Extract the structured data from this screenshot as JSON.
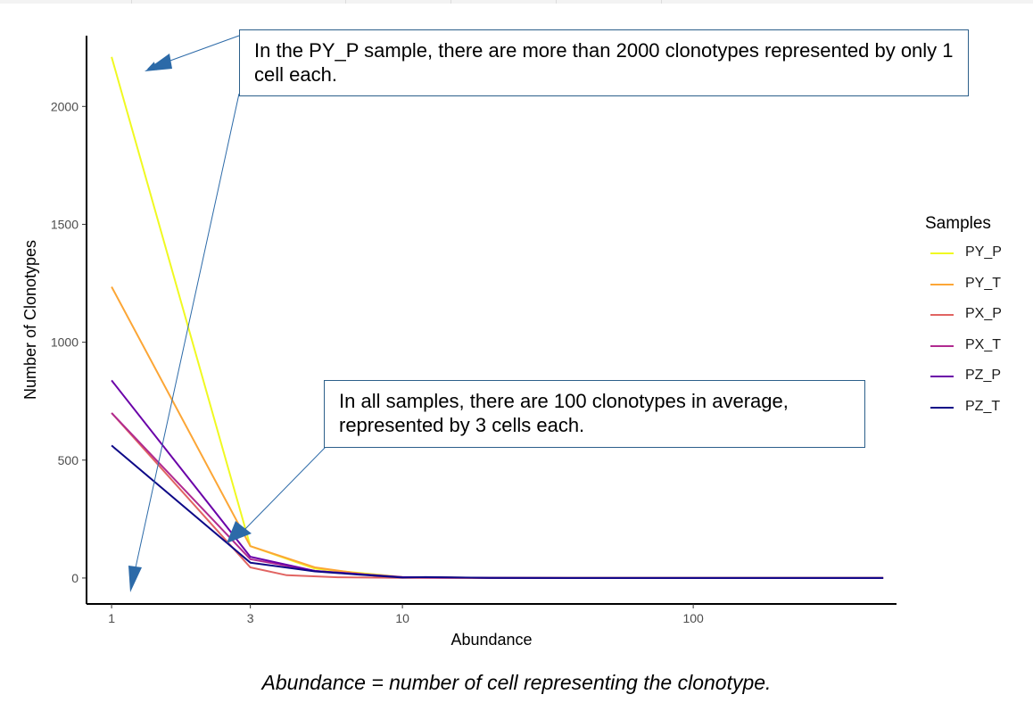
{
  "chart_data": {
    "type": "line",
    "xlabel": "Abundance",
    "ylabel": "Number of Clonotypes",
    "x_scale": "log",
    "xlim": [
      0.82,
      500
    ],
    "ylim": [
      -110,
      2300
    ],
    "x_ticks": [
      1,
      3,
      10,
      100
    ],
    "y_ticks": [
      0,
      500,
      1000,
      1500,
      2000
    ],
    "grid": false,
    "legend_title": "Samples",
    "legend_position": "right",
    "series": [
      {
        "name": "PY_P",
        "color": "#f0f921",
        "x": [
          1,
          3,
          5,
          10,
          20,
          50,
          100,
          450
        ],
        "y": [
          2210,
          135,
          40,
          4,
          1,
          0,
          0,
          0
        ]
      },
      {
        "name": "PY_T",
        "color": "#fca636",
        "x": [
          1,
          3,
          5,
          8,
          10,
          20,
          50,
          100,
          450
        ],
        "y": [
          1235,
          135,
          45,
          10,
          3,
          1,
          0,
          0,
          0
        ]
      },
      {
        "name": "PX_P",
        "color": "#e16462",
        "x": [
          1,
          3,
          4,
          6,
          10,
          20,
          50,
          100,
          450
        ],
        "y": [
          700,
          45,
          12,
          3,
          1,
          0,
          0,
          0,
          0
        ]
      },
      {
        "name": "PX_T",
        "color": "#b12a90",
        "x": [
          1,
          3,
          5,
          10,
          20,
          50,
          100,
          450
        ],
        "y": [
          700,
          80,
          30,
          3,
          1,
          0,
          0,
          0
        ]
      },
      {
        "name": "PZ_P",
        "color": "#6a00a8",
        "x": [
          1,
          3,
          5,
          10,
          20,
          50,
          100,
          450
        ],
        "y": [
          838,
          90,
          30,
          4,
          1,
          0,
          0,
          0
        ]
      },
      {
        "name": "PZ_T",
        "color": "#0d0887",
        "x": [
          1,
          3,
          5,
          7,
          10,
          12,
          20,
          50,
          100,
          450
        ],
        "y": [
          562,
          65,
          28,
          15,
          2,
          4,
          1,
          0,
          0,
          0
        ]
      }
    ],
    "annotations": [
      {
        "text": "In the PY_P sample, there are more than 2000 clonotypes represented by only 1 cell each."
      },
      {
        "text": "In all samples, there are 100 clonotypes in average, represented by 3 cells each."
      }
    ]
  },
  "caption": "Abundance = number of cell representing the clonotype."
}
